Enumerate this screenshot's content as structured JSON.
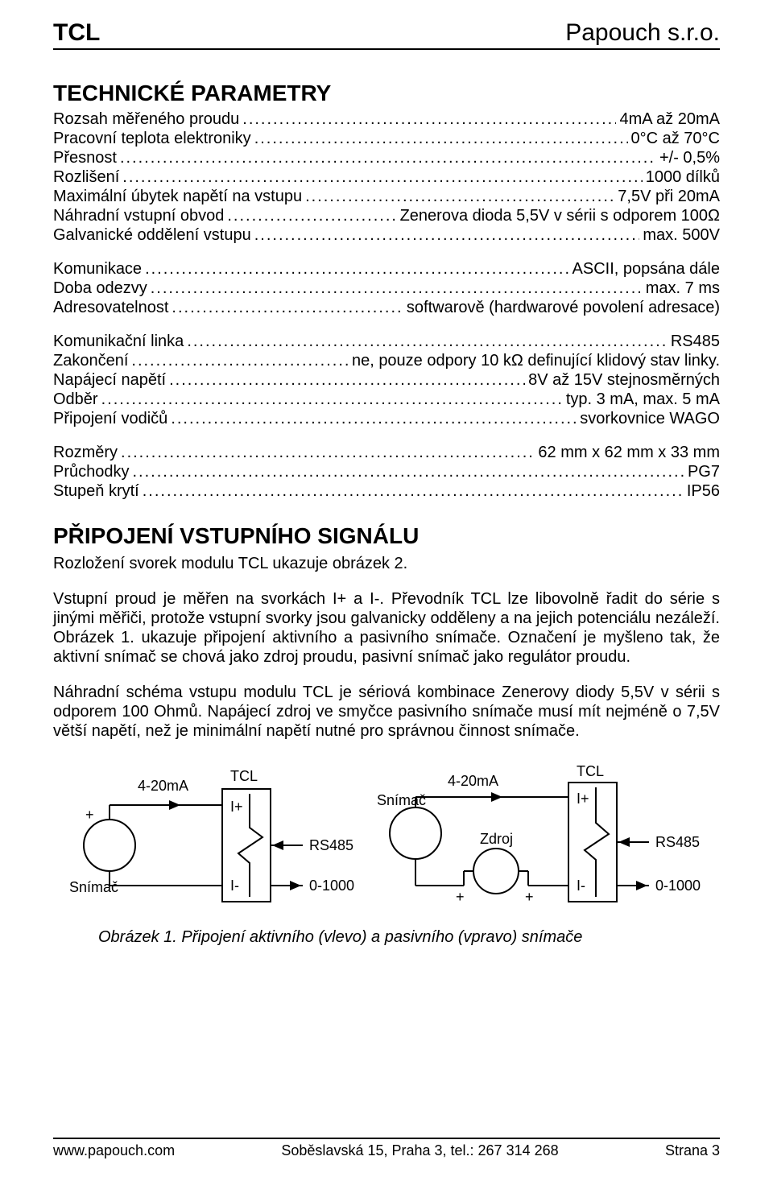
{
  "header": {
    "left": "TCL",
    "right": "Papouch s.r.o."
  },
  "section1_title": "TECHNICKÉ PARAMETRY",
  "params_group1": [
    {
      "label": "Rozsah měřeného proudu",
      "value": "4mA až 20mA"
    },
    {
      "label": "Pracovní teplota elektroniky",
      "value": "0°C až 70°C"
    },
    {
      "label": "Přesnost",
      "value": "+/- 0,5%"
    },
    {
      "label": "Rozlišení",
      "value": "1000 dílků"
    },
    {
      "label": "Maximální úbytek napětí na vstupu",
      "value": "7,5V při 20mA"
    },
    {
      "label": "Náhradní vstupní obvod",
      "value": "Zenerova dioda 5,5V v sérii s odporem 100Ω"
    },
    {
      "label": "Galvanické oddělení vstupu",
      "value": "max. 500V"
    }
  ],
  "params_group2": [
    {
      "label": "Komunikace",
      "value": "ASCII, popsána dále"
    },
    {
      "label": "Doba odezvy",
      "value": "max. 7 ms"
    },
    {
      "label": "Adresovatelnost",
      "value": "softwarově (hardwarové povolení adresace)"
    }
  ],
  "params_group3": [
    {
      "label": "Komunikační linka",
      "value": "RS485"
    },
    {
      "label": "Zakončení",
      "value": "ne, pouze odpory 10 kΩ definující klidový stav linky."
    },
    {
      "label": "Napájecí napětí",
      "value": "8V až 15V stejnosměrných"
    },
    {
      "label": "Odběr",
      "value": "typ. 3 mA, max. 5 mA"
    },
    {
      "label": "Připojení vodičů",
      "value": "svorkovnice WAGO"
    }
  ],
  "params_group4": [
    {
      "label": "Rozměry",
      "value": "62 mm x 62 mm x 33 mm"
    },
    {
      "label": "Průchodky",
      "value": "PG7"
    },
    {
      "label": "Stupeň krytí",
      "value": "IP56"
    }
  ],
  "section2_title": "PŘIPOJENÍ VSTUPNÍHO SIGNÁLU",
  "para1": "Rozložení svorek modulu TCL ukazuje obrázek 2.",
  "para2": "Vstupní proud je měřen na svorkách I+ a I-. Převodník TCL lze libovolně řadit do série s jinými měřiči, protože vstupní svorky jsou galvanicky odděleny a na jejich potenciálu nezáleží. Obrázek 1. ukazuje připojení aktivního a pasivního snímače. Označení je myšleno tak, že aktivní snímač se chová jako zdroj proudu, pasivní snímač jako regulátor proudu.",
  "para3": "Náhradní schéma vstupu modulu TCL je sériová kombinace Zenerovy diody 5,5V v sérii s odporem 100 Ohmů. Napájecí zdroj ve smyčce pasivního snímače musí mít nejméně o 7,5V větší napětí, než je minimální napětí nutné pro správnou činnost snímače.",
  "diagram": {
    "left": {
      "current": "4-20mA",
      "module": "TCL",
      "plus": "+",
      "i_plus": "I+",
      "sensor": "Snímač",
      "i_minus": "I-",
      "rs485": "RS485",
      "range": "0-1000"
    },
    "right": {
      "current": "4-20mA",
      "module": "TCL",
      "sensor": "Snímač",
      "i_plus": "I+",
      "source": "Zdroj",
      "plus1": "+",
      "plus2": "+",
      "i_minus": "I-",
      "rs485": "RS485",
      "range": "0-1000"
    }
  },
  "caption": "Obrázek 1. Připojení aktivního (vlevo) a pasivního (vpravo) snímače",
  "footer": {
    "left": "www.papouch.com",
    "center": "Soběslavská 15, Praha 3, tel.: 267 314 268",
    "right": "Strana 3"
  }
}
